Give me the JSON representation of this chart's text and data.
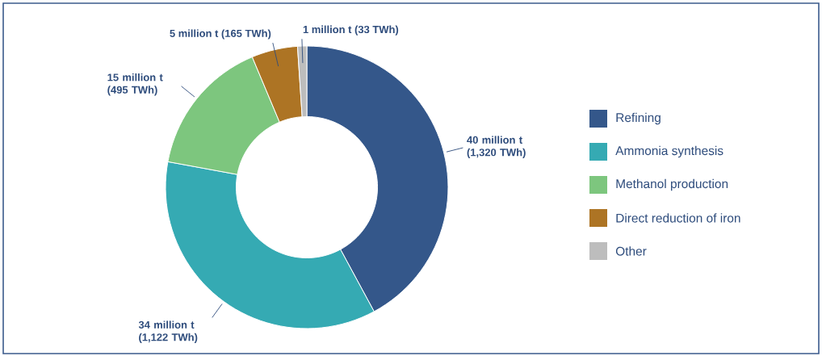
{
  "chart_data": {
    "type": "donut",
    "categories": [
      "Refining",
      "Ammonia synthesis",
      "Methanol production",
      "Direct reduction of iron",
      "Other"
    ],
    "values": [
      1320,
      1122,
      495,
      165,
      33
    ],
    "colors": [
      "#34578a",
      "#35aab3",
      "#7dc67e",
      "#ad7424",
      "#bdbdbd"
    ],
    "value_labels": [
      "40 million t (1,320 TWh)",
      "34 million t (1,122 TWh)",
      "15 million t (495 TWh)",
      "5 million t (165 TWh)",
      "1 million t (33 TWh)"
    ],
    "legend": "right"
  }
}
